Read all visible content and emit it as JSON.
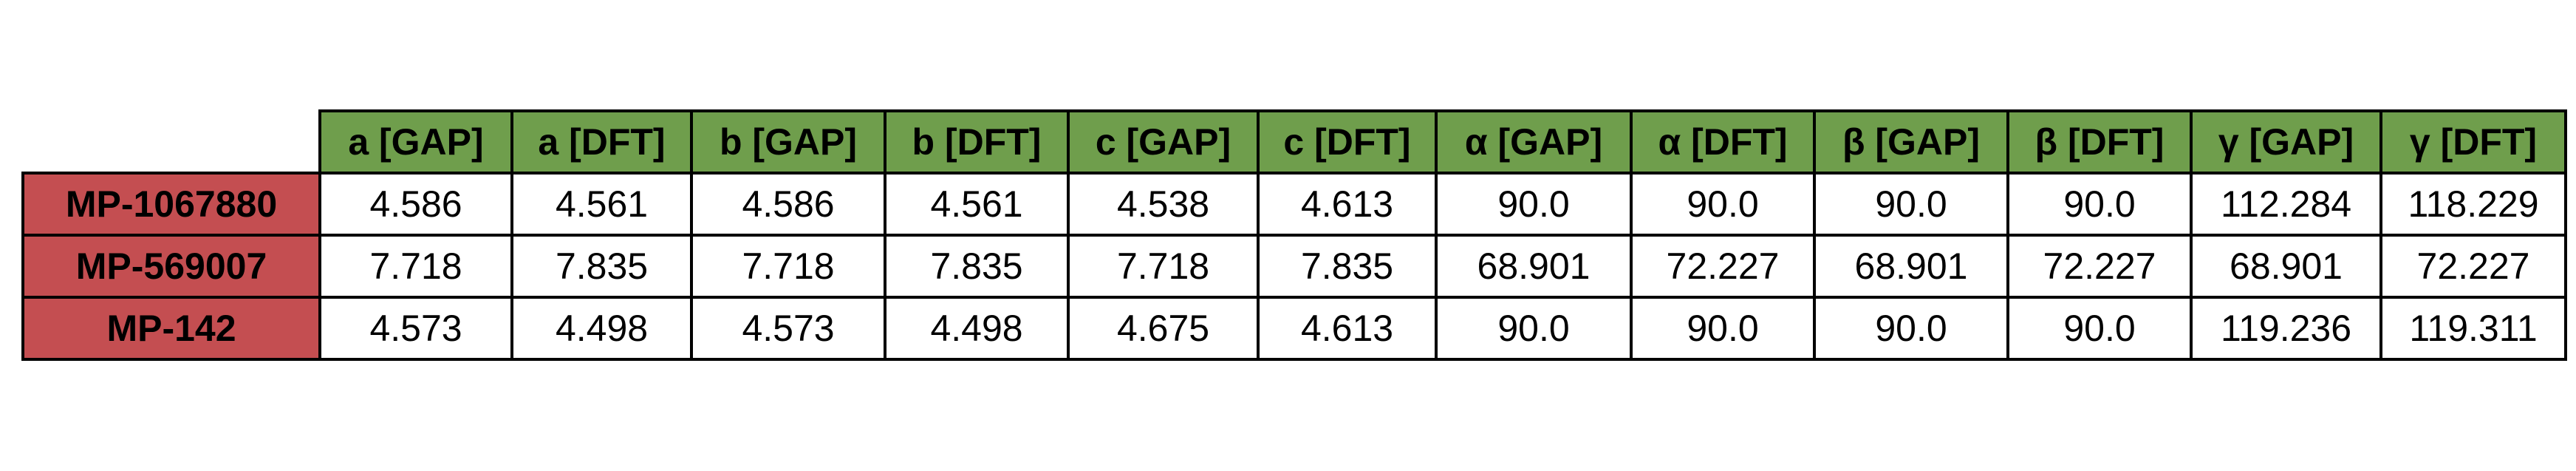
{
  "table": {
    "header": [
      "a [GAP]",
      "a [DFT]",
      "b [GAP]",
      "b [DFT]",
      "c [GAP]",
      "c [DFT]",
      "α [GAP]",
      "α [DFT]",
      "β [GAP]",
      "β [DFT]",
      "γ [GAP]",
      "γ [DFT]"
    ],
    "rows": [
      {
        "label": "MP-1067880",
        "cells": [
          "4.586",
          "4.561",
          "4.586",
          "4.561",
          "4.538",
          "4.613",
          "90.0",
          "90.0",
          "90.0",
          "90.0",
          "112.284",
          "118.229"
        ]
      },
      {
        "label": "MP-569007",
        "cells": [
          "7.718",
          "7.835",
          "7.718",
          "7.835",
          "7.718",
          "7.835",
          "68.901",
          "72.227",
          "68.901",
          "72.227",
          "68.901",
          "72.227"
        ]
      },
      {
        "label": "MP-142",
        "cells": [
          "4.573",
          "4.498",
          "4.573",
          "4.498",
          "4.675",
          "4.613",
          "90.0",
          "90.0",
          "90.0",
          "90.0",
          "119.236",
          "119.311"
        ]
      }
    ]
  }
}
